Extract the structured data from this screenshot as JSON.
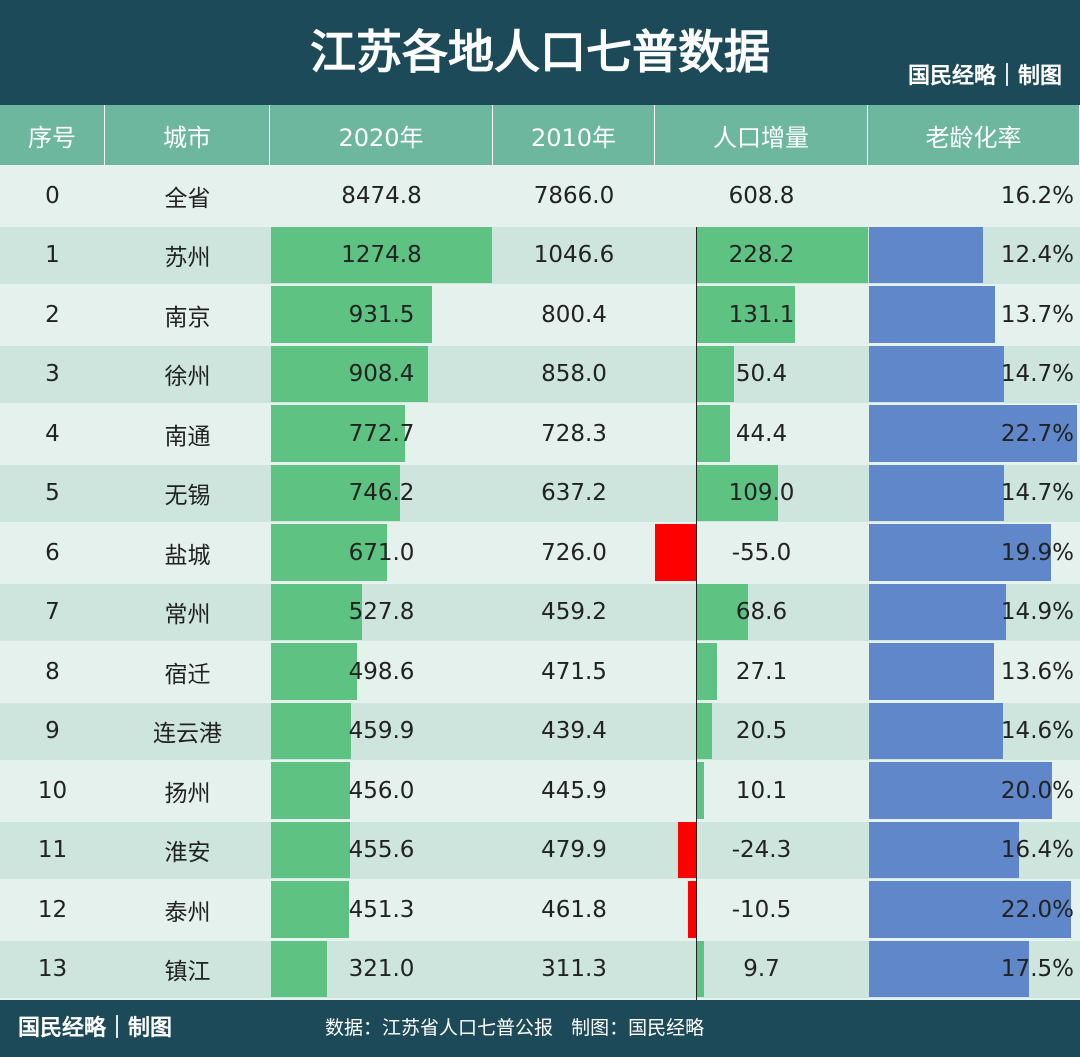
{
  "header": {
    "title": "江苏各地人口七普数据",
    "brand": "国民经略｜制图"
  },
  "table": {
    "columns": [
      "序号",
      "城市",
      "2020年",
      "2010年",
      "人口增量",
      "老龄化率"
    ],
    "rows": [
      [
        "0",
        "全省",
        "8474.8",
        "7866.0",
        "608.8",
        "16.2%"
      ],
      [
        "1",
        "苏州",
        "1274.8",
        "1046.6",
        "228.2",
        "12.4%"
      ],
      [
        "2",
        "南京",
        "931.5",
        "800.4",
        "131.1",
        "13.7%"
      ],
      [
        "3",
        "徐州",
        "908.4",
        "858.0",
        "50.4",
        "14.7%"
      ],
      [
        "4",
        "南通",
        "772.7",
        "728.3",
        "44.4",
        "22.7%"
      ],
      [
        "5",
        "无锡",
        "746.2",
        "637.2",
        "109.0",
        "14.7%"
      ],
      [
        "6",
        "盐城",
        "671.0",
        "726.0",
        "-55.0",
        "19.9%"
      ],
      [
        "7",
        "常州",
        "527.8",
        "459.2",
        "68.6",
        "14.9%"
      ],
      [
        "8",
        "宿迁",
        "498.6",
        "471.5",
        "27.1",
        "13.6%"
      ],
      [
        "9",
        "连云港",
        "459.9",
        "439.4",
        "20.5",
        "14.6%"
      ],
      [
        "10",
        "扬州",
        "456.0",
        "445.9",
        "10.1",
        "20.0%"
      ],
      [
        "11",
        "淮安",
        "455.6",
        "479.9",
        "-24.3",
        "16.4%"
      ],
      [
        "12",
        "泰州",
        "451.3",
        "461.8",
        "-10.5",
        "22.0%"
      ],
      [
        "13",
        "镇江",
        "321.0",
        "311.3",
        "9.7",
        "17.5%"
      ]
    ]
  },
  "footer": {
    "brand": "国民经略｜制图",
    "source": "数据：江苏省人口七普公报   制图：国民经略"
  }
}
